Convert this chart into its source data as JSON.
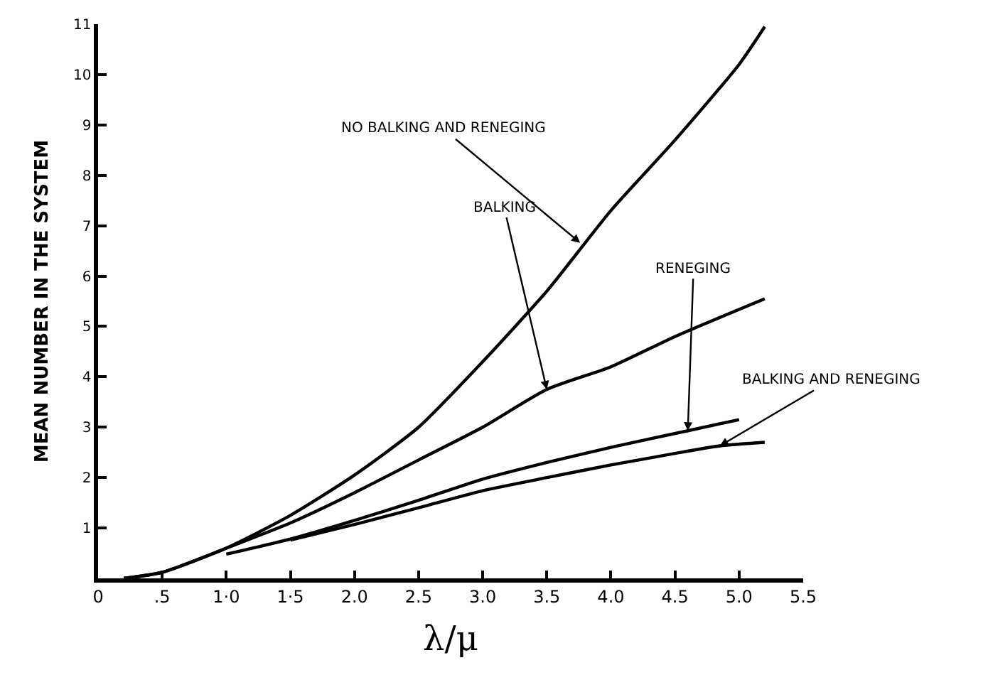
{
  "chart_data": {
    "type": "line",
    "xlabel": "λ/μ",
    "ylabel": "MEAN NUMBER IN THE SYSTEM",
    "xlim": [
      0,
      5.5
    ],
    "ylim": [
      0,
      11
    ],
    "xticks": [
      0,
      {
        "value": 0.5,
        "label": ".5"
      },
      {
        "value": 1,
        "label": "1·0"
      },
      {
        "value": 1.5,
        "label": "1·5"
      },
      {
        "value": 2,
        "label": "2.0"
      },
      {
        "value": 2.5,
        "label": "2.5"
      },
      {
        "value": 3,
        "label": "3.0"
      },
      {
        "value": 3.5,
        "label": "3.5"
      },
      {
        "value": 4,
        "label": "4.0"
      },
      {
        "value": 4.5,
        "label": "4.5"
      },
      {
        "value": 5,
        "label": "5.0"
      },
      {
        "value": 5.5,
        "label": "5.5"
      }
    ],
    "yticks": [
      1,
      2,
      3,
      4,
      5,
      6,
      7,
      8,
      9,
      10,
      11
    ],
    "marker": "none",
    "line_style": "solid",
    "series": [
      {
        "color": "#000000",
        "x": [
          0.2,
          0.5,
          1.0,
          1.5,
          2.0,
          2.5,
          3.0,
          3.5,
          4.0,
          4.5,
          5.0,
          5.2
        ],
        "values": [
          0,
          0.12,
          0.6,
          1.25,
          2.05,
          3.0,
          4.3,
          5.7,
          7.3,
          8.7,
          10.2,
          10.95
        ]
      },
      {
        "color": "#000000",
        "x": [
          0.2,
          0.5,
          1.0,
          1.5,
          2.0,
          2.5,
          3.0,
          3.5,
          4.0,
          4.5,
          5.2
        ],
        "values": [
          0,
          0.12,
          0.6,
          1.1,
          1.7,
          2.35,
          3.0,
          3.75,
          4.2,
          4.8,
          5.55
        ]
      },
      {
        "color": "#000000",
        "x": [
          1.0,
          1.5,
          2.0,
          2.5,
          3.0,
          3.5,
          4.0,
          4.6,
          5.0
        ],
        "values": [
          0.48,
          0.78,
          1.15,
          1.55,
          1.97,
          2.3,
          2.6,
          2.93,
          3.15
        ]
      },
      {
        "color": "#000000",
        "x": [
          1.5,
          2.0,
          2.5,
          3.0,
          3.5,
          4.0,
          4.5,
          4.85,
          5.2
        ],
        "values": [
          0.76,
          1.07,
          1.4,
          1.74,
          2.0,
          2.25,
          2.48,
          2.63,
          2.7
        ]
      }
    ],
    "annotations": [
      {
        "text": "NO BALKING AND RENEGING",
        "x": 3.76,
        "y": 6.66
      },
      {
        "text": "BALKING",
        "x": 3.5,
        "y": 3.75
      },
      {
        "text": "RENEGING",
        "x": 4.6,
        "y": 2.93
      },
      {
        "text": "BALKING AND RENEGING",
        "x": 4.85,
        "y": 2.63
      }
    ]
  }
}
